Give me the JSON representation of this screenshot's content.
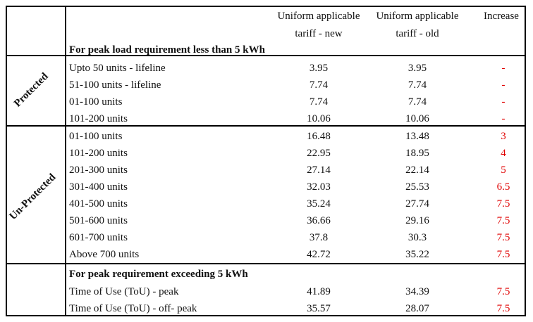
{
  "header": {
    "col_new": [
      "Uniform applicable",
      "tariff - new"
    ],
    "col_old": [
      "Uniform applicable",
      "tariff - old"
    ],
    "col_increase": "Increase",
    "section1_title": "For peak load requirement less than 5 kWh"
  },
  "protected": {
    "label": "Protected",
    "rows": [
      {
        "label": "Upto 50 units - lifeline",
        "new": "3.95",
        "old": "3.95",
        "increase": "-"
      },
      {
        "label": "51-100 units - lifeline",
        "new": "7.74",
        "old": "7.74",
        "increase": "-"
      },
      {
        "label": "01-100 units",
        "new": "7.74",
        "old": "7.74",
        "increase": "-"
      },
      {
        "label": "101-200 units",
        "new": "10.06",
        "old": "10.06",
        "increase": "-"
      }
    ]
  },
  "unprotected": {
    "label": "Un-Protected",
    "rows": [
      {
        "label": "01-100 units",
        "new": "16.48",
        "old": "13.48",
        "increase": "3"
      },
      {
        "label": "101-200 units",
        "new": "22.95",
        "old": "18.95",
        "increase": "4"
      },
      {
        "label": "201-300 units",
        "new": "27.14",
        "old": "22.14",
        "increase": "5"
      },
      {
        "label": "301-400 units",
        "new": "32.03",
        "old": "25.53",
        "increase": "6.5"
      },
      {
        "label": "401-500 units",
        "new": "35.24",
        "old": "27.74",
        "increase": "7.5"
      },
      {
        "label": "501-600 units",
        "new": "36.66",
        "old": "29.16",
        "increase": "7.5"
      },
      {
        "label": "601-700 units",
        "new": "37.8",
        "old": "30.3",
        "increase": "7.5"
      },
      {
        "label": "Above 700 units",
        "new": "42.72",
        "old": "35.22",
        "increase": "7.5"
      }
    ]
  },
  "peak": {
    "title": "For peak requirement exceeding 5 kWh",
    "rows": [
      {
        "label": "Time of Use (ToU) - peak",
        "new": "41.89",
        "old": "34.39",
        "increase": "7.5"
      },
      {
        "label": "Time of Use (ToU) - off- peak",
        "new": "35.57",
        "old": "28.07",
        "increase": "7.5"
      }
    ]
  }
}
